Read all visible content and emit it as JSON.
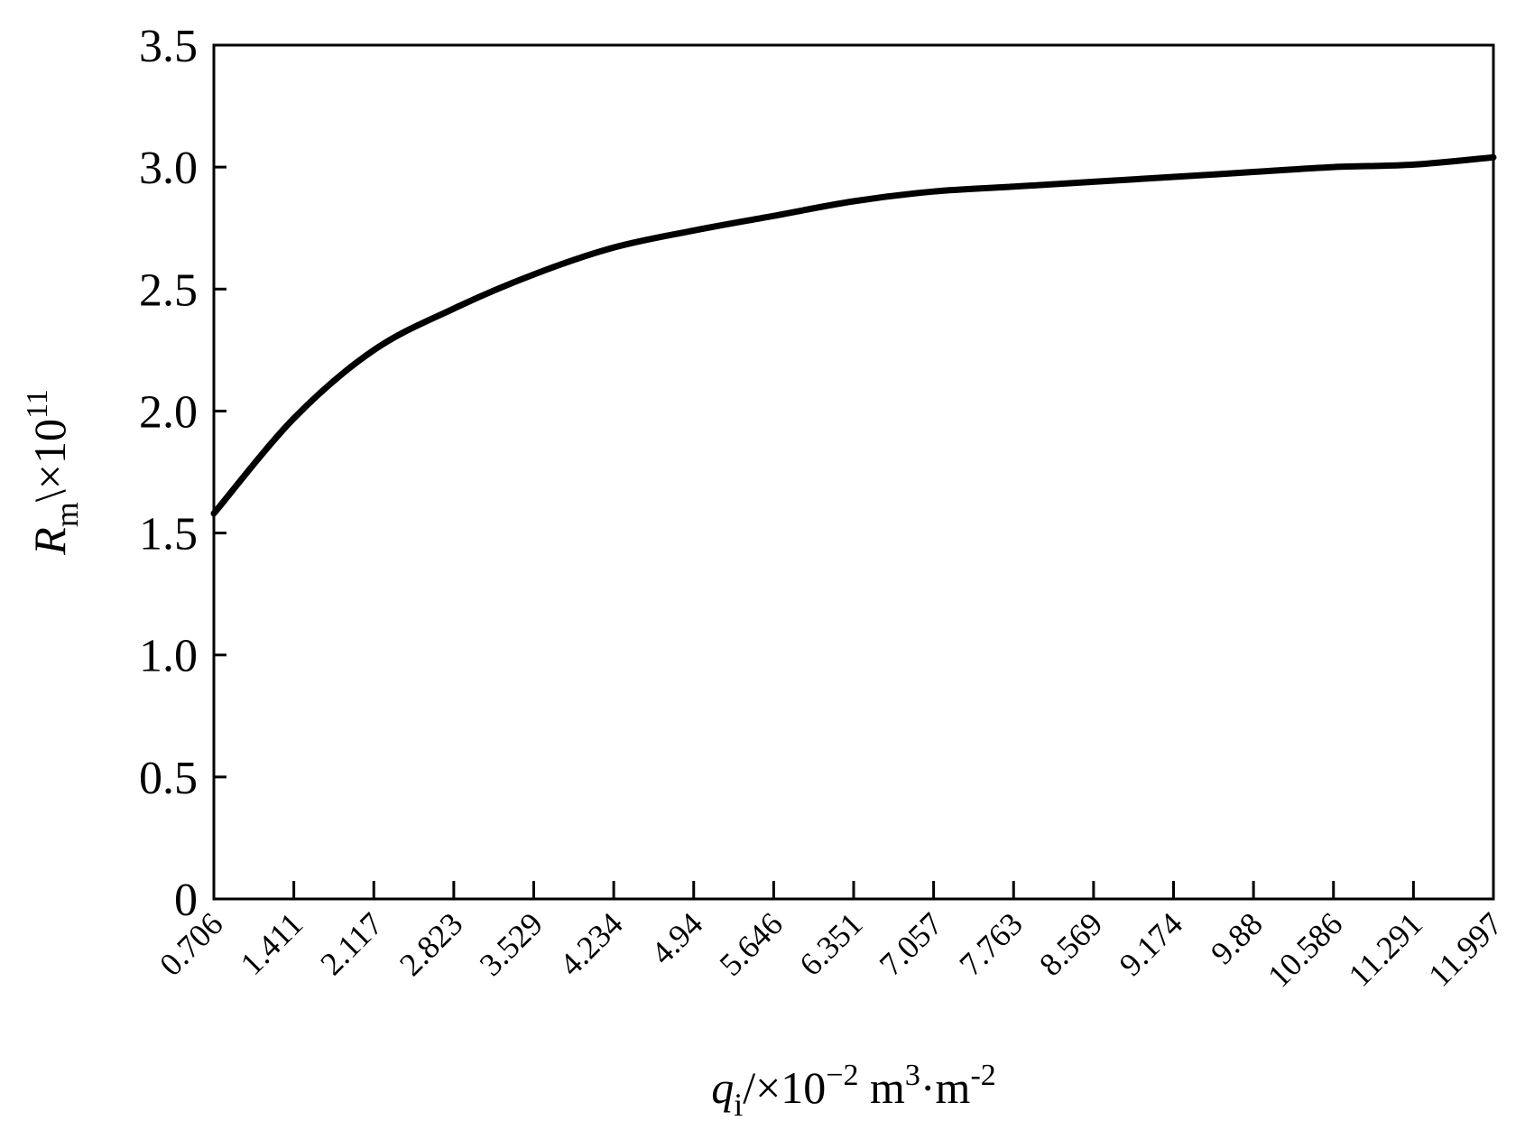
{
  "chart_data": {
    "type": "line",
    "x_categories": [
      "0.706",
      "1.411",
      "2.117",
      "2.823",
      "3.529",
      "4.234",
      "4.94",
      "5.646",
      "6.351",
      "7.057",
      "7.763",
      "8.569",
      "9.174",
      "9.88",
      "10.586",
      "11.291",
      "11.997"
    ],
    "y_ticks": [
      "0",
      "0.5",
      "1.0",
      "1.5",
      "2.0",
      "2.5",
      "3.0",
      "3.5"
    ],
    "ylim": [
      0,
      3.5
    ],
    "xlabel": {
      "symbol": "q",
      "subscript": "i",
      "unit_prefix": "/×10",
      "exponent": "−2",
      "unit_mid": " m",
      "unit_exp": "3",
      "unit_tail": "·m",
      "unit_tail_exp": "-2"
    },
    "ylabel": {
      "symbol": "R",
      "subscript": "m",
      "unit_prefix": "\\×10",
      "exponent": "11"
    },
    "series": [
      {
        "values": [
          1.58,
          1.97,
          2.25,
          2.42,
          2.56,
          2.67,
          2.74,
          2.8,
          2.86,
          2.9,
          2.92,
          2.94,
          2.96,
          2.98,
          3.0,
          3.01,
          3.04
        ]
      }
    ],
    "grid": false,
    "line_color": "#000000"
  }
}
